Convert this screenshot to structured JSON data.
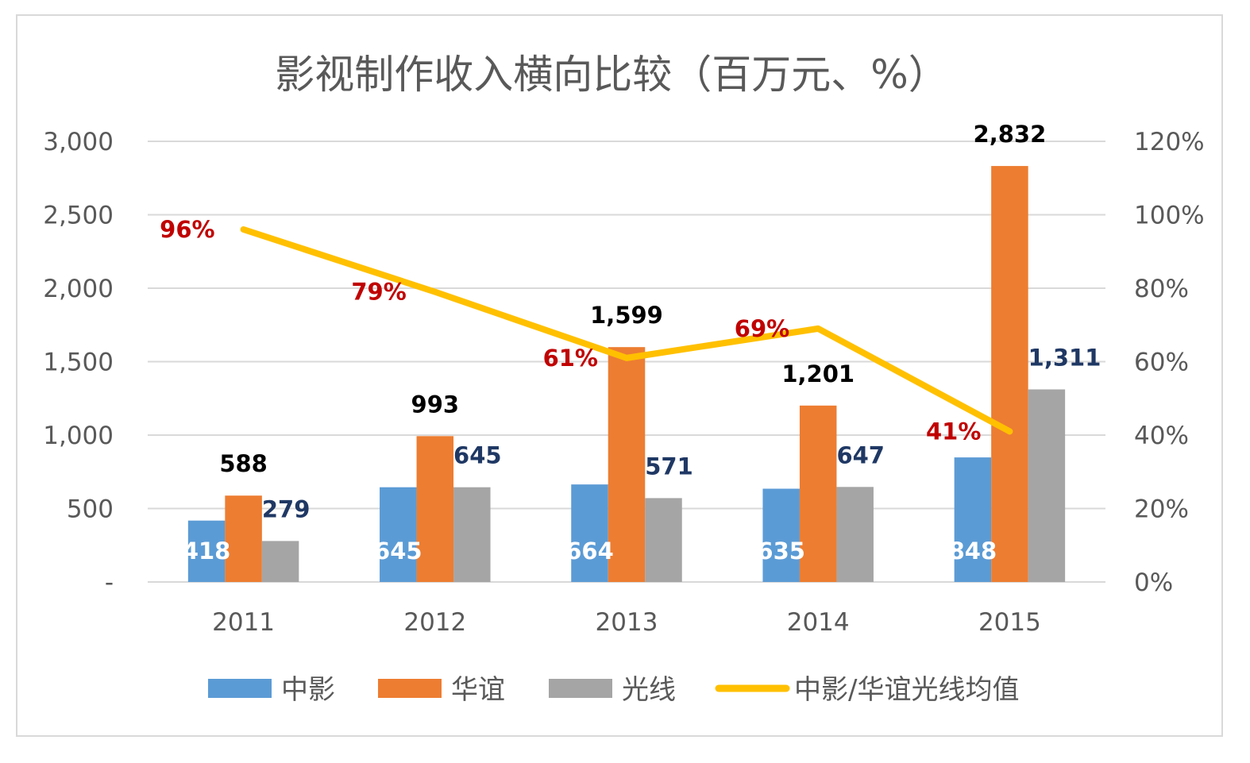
{
  "chart_data": {
    "type": "bar",
    "title": "影视制作收入横向比较（百万元、%）",
    "categories": [
      "2011",
      "2012",
      "2013",
      "2014",
      "2015"
    ],
    "series": [
      {
        "name": "中影",
        "type": "bar",
        "axis": "left",
        "values": [
          418,
          645,
          664,
          635,
          848
        ],
        "color": "#5b9bd5",
        "label_color": "#ffffff"
      },
      {
        "name": "华谊",
        "type": "bar",
        "axis": "left",
        "values": [
          588,
          993,
          1599,
          1201,
          2832
        ],
        "color": "#ed7d31",
        "label_color": "#000000"
      },
      {
        "name": "光线",
        "type": "bar",
        "axis": "left",
        "values": [
          279,
          645,
          571,
          647,
          1311
        ],
        "color": "#a5a5a5",
        "label_color": "#1f3864"
      },
      {
        "name": "中影/华谊光线均值",
        "type": "line",
        "axis": "right",
        "values": [
          96,
          79,
          61,
          69,
          41
        ],
        "color": "#ffc000",
        "label_color": "#c00000"
      }
    ],
    "y_left": {
      "min": 0,
      "max": 3000,
      "ticks": [
        "-",
        "500",
        "1,000",
        "1,500",
        "2,000",
        "2,500",
        "3,000"
      ]
    },
    "y_right": {
      "min": 0,
      "max": 120,
      "ticks": [
        "0%",
        "20%",
        "40%",
        "60%",
        "80%",
        "100%",
        "120%"
      ]
    },
    "bar_labels": [
      [
        "418",
        "645",
        "664",
        "635",
        "848"
      ],
      [
        "588",
        "993",
        "1,599",
        "1,201",
        "2,832"
      ],
      [
        "279",
        "645",
        "571",
        "647",
        "1,311"
      ]
    ],
    "line_labels": [
      "96%",
      "79%",
      "61%",
      "69%",
      "41%"
    ],
    "grid": true,
    "legend_position": "bottom"
  }
}
